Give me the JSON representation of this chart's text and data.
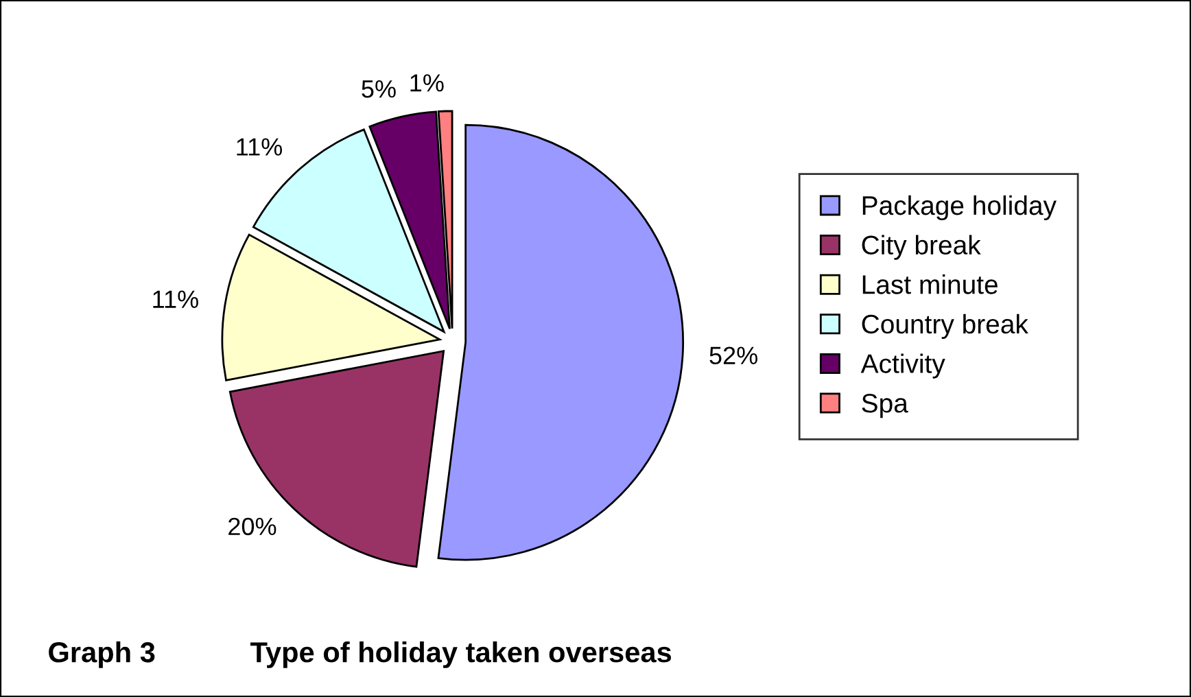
{
  "chart_data": {
    "type": "pie",
    "title": "Graph 3",
    "subtitle": "Type of holiday taken overseas",
    "categories": [
      "Package holiday",
      "City break",
      "Last minute",
      "Country break",
      "Activity",
      "Spa"
    ],
    "values": [
      52,
      20,
      11,
      11,
      5,
      1
    ],
    "colors": [
      "#9999ff",
      "#993366",
      "#ffffcc",
      "#ccffff",
      "#660066",
      "#ff8080"
    ],
    "value_labels": [
      "52%",
      "20%",
      "11%",
      "11%",
      "5%",
      "1%"
    ],
    "legend": "right"
  }
}
